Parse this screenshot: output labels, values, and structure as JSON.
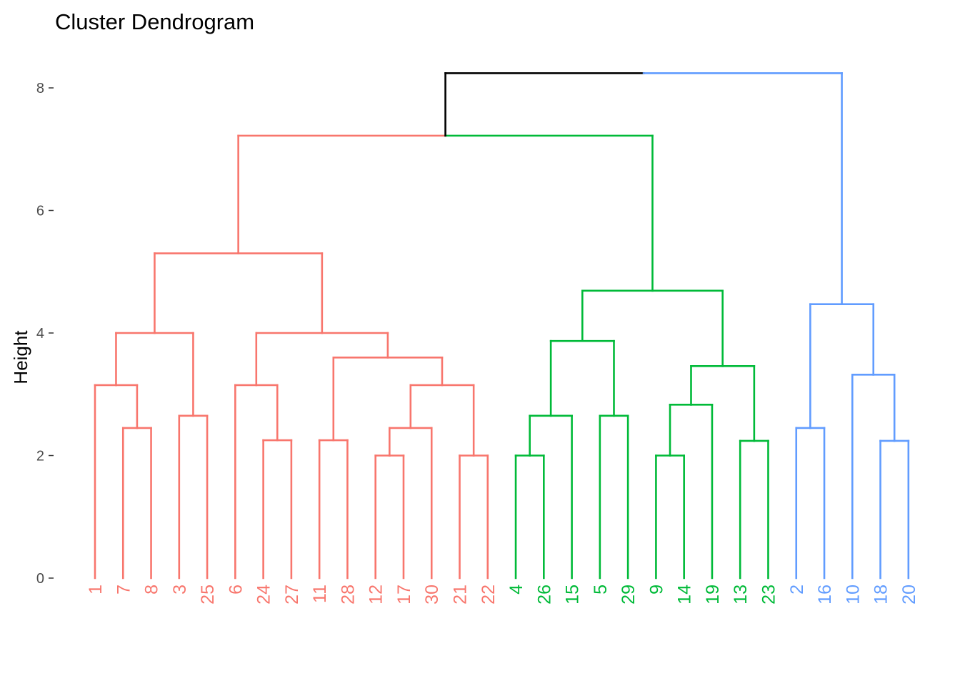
{
  "chart_data": {
    "type": "dendrogram",
    "title": "Cluster Dendrogram",
    "xlabel": "",
    "ylabel": "Height",
    "ylim": [
      0,
      8.2
    ],
    "yticks": [
      0,
      2,
      4,
      6,
      8
    ],
    "grid": false,
    "colors": {
      "cluster_1": "#F8766D",
      "cluster_2": "#00BA38",
      "cluster_3": "#619CFF",
      "root": "#000000"
    },
    "leaves": [
      {
        "label": "1",
        "cluster": "cluster_1"
      },
      {
        "label": "7",
        "cluster": "cluster_1"
      },
      {
        "label": "8",
        "cluster": "cluster_1"
      },
      {
        "label": "3",
        "cluster": "cluster_1"
      },
      {
        "label": "25",
        "cluster": "cluster_1"
      },
      {
        "label": "6",
        "cluster": "cluster_1"
      },
      {
        "label": "24",
        "cluster": "cluster_1"
      },
      {
        "label": "27",
        "cluster": "cluster_1"
      },
      {
        "label": "11",
        "cluster": "cluster_1"
      },
      {
        "label": "28",
        "cluster": "cluster_1"
      },
      {
        "label": "12",
        "cluster": "cluster_1"
      },
      {
        "label": "17",
        "cluster": "cluster_1"
      },
      {
        "label": "30",
        "cluster": "cluster_1"
      },
      {
        "label": "21",
        "cluster": "cluster_1"
      },
      {
        "label": "22",
        "cluster": "cluster_1"
      },
      {
        "label": "4",
        "cluster": "cluster_2"
      },
      {
        "label": "26",
        "cluster": "cluster_2"
      },
      {
        "label": "15",
        "cluster": "cluster_2"
      },
      {
        "label": "5",
        "cluster": "cluster_2"
      },
      {
        "label": "29",
        "cluster": "cluster_2"
      },
      {
        "label": "9",
        "cluster": "cluster_2"
      },
      {
        "label": "14",
        "cluster": "cluster_2"
      },
      {
        "label": "19",
        "cluster": "cluster_2"
      },
      {
        "label": "13",
        "cluster": "cluster_2"
      },
      {
        "label": "23",
        "cluster": "cluster_2"
      },
      {
        "label": "2",
        "cluster": "cluster_3"
      },
      {
        "label": "16",
        "cluster": "cluster_3"
      },
      {
        "label": "10",
        "cluster": "cluster_3"
      },
      {
        "label": "18",
        "cluster": "cluster_3"
      },
      {
        "label": "20",
        "cluster": "cluster_3"
      }
    ],
    "merges": [
      {
        "left": "7",
        "right": "8",
        "height": 2.45,
        "cluster": "cluster_1"
      },
      {
        "left": "1",
        "right": [
          "7",
          "8"
        ],
        "height": 3.15,
        "cluster": "cluster_1"
      },
      {
        "left": "3",
        "right": "25",
        "height": 2.65,
        "cluster": "cluster_1"
      },
      {
        "left": [
          "1",
          "7",
          "8"
        ],
        "right": [
          "3",
          "25"
        ],
        "height": 4.0,
        "cluster": "cluster_1"
      },
      {
        "left": "24",
        "right": "27",
        "height": 2.25,
        "cluster": "cluster_1"
      },
      {
        "left": "6",
        "right": [
          "24",
          "27"
        ],
        "height": 3.15,
        "cluster": "cluster_1"
      },
      {
        "left": "11",
        "right": "28",
        "height": 2.25,
        "cluster": "cluster_1"
      },
      {
        "left": "12",
        "right": "17",
        "height": 2.0,
        "cluster": "cluster_1"
      },
      {
        "left": [
          "12",
          "17"
        ],
        "right": "30",
        "height": 2.45,
        "cluster": "cluster_1"
      },
      {
        "left": "21",
        "right": "22",
        "height": 2.0,
        "cluster": "cluster_1"
      },
      {
        "left": [
          "12",
          "17",
          "30"
        ],
        "right": [
          "21",
          "22"
        ],
        "height": 3.15,
        "cluster": "cluster_1"
      },
      {
        "left": [
          "11",
          "28"
        ],
        "right": [
          "12",
          "17",
          "30",
          "21",
          "22"
        ],
        "height": 3.6,
        "cluster": "cluster_1"
      },
      {
        "left": [
          "6",
          "24",
          "27"
        ],
        "right": [
          "11",
          "28",
          "12",
          "17",
          "30",
          "21",
          "22"
        ],
        "height": 4.0,
        "cluster": "cluster_1"
      },
      {
        "left": [
          "1",
          "7",
          "8",
          "3",
          "25"
        ],
        "right": [
          "6",
          "24",
          "27",
          "11",
          "28",
          "12",
          "17",
          "30",
          "21",
          "22"
        ],
        "height": 5.3,
        "cluster": "cluster_1"
      },
      {
        "left": "4",
        "right": "26",
        "height": 2.0,
        "cluster": "cluster_2"
      },
      {
        "left": [
          "4",
          "26"
        ],
        "right": "15",
        "height": 2.65,
        "cluster": "cluster_2"
      },
      {
        "left": "5",
        "right": "29",
        "height": 2.65,
        "cluster": "cluster_2"
      },
      {
        "left": [
          "4",
          "26",
          "15"
        ],
        "right": [
          "5",
          "29"
        ],
        "height": 3.87,
        "cluster": "cluster_2"
      },
      {
        "left": "9",
        "right": "14",
        "height": 2.0,
        "cluster": "cluster_2"
      },
      {
        "left": [
          "9",
          "14"
        ],
        "right": "19",
        "height": 2.83,
        "cluster": "cluster_2"
      },
      {
        "left": "13",
        "right": "23",
        "height": 2.24,
        "cluster": "cluster_2"
      },
      {
        "left": [
          "9",
          "14",
          "19"
        ],
        "right": [
          "13",
          "23"
        ],
        "height": 3.46,
        "cluster": "cluster_2"
      },
      {
        "left": [
          "4",
          "26",
          "15",
          "5",
          "29"
        ],
        "right": [
          "9",
          "14",
          "19",
          "13",
          "23"
        ],
        "height": 4.69,
        "cluster": "cluster_2"
      },
      {
        "left": "cluster_1",
        "right": "cluster_2",
        "height": 7.22,
        "cluster": "root"
      },
      {
        "left": "2",
        "right": "16",
        "height": 2.45,
        "cluster": "cluster_3"
      },
      {
        "left": "18",
        "right": "20",
        "height": 2.24,
        "cluster": "cluster_3"
      },
      {
        "left": "10",
        "right": [
          "18",
          "20"
        ],
        "height": 3.32,
        "cluster": "cluster_3"
      },
      {
        "left": [
          "2",
          "16"
        ],
        "right": [
          "10",
          "18",
          "20"
        ],
        "height": 4.47,
        "cluster": "cluster_3"
      },
      {
        "left": [
          "cluster_1",
          "cluster_2"
        ],
        "right": "cluster_3",
        "height": 8.24,
        "cluster": "root"
      }
    ]
  }
}
